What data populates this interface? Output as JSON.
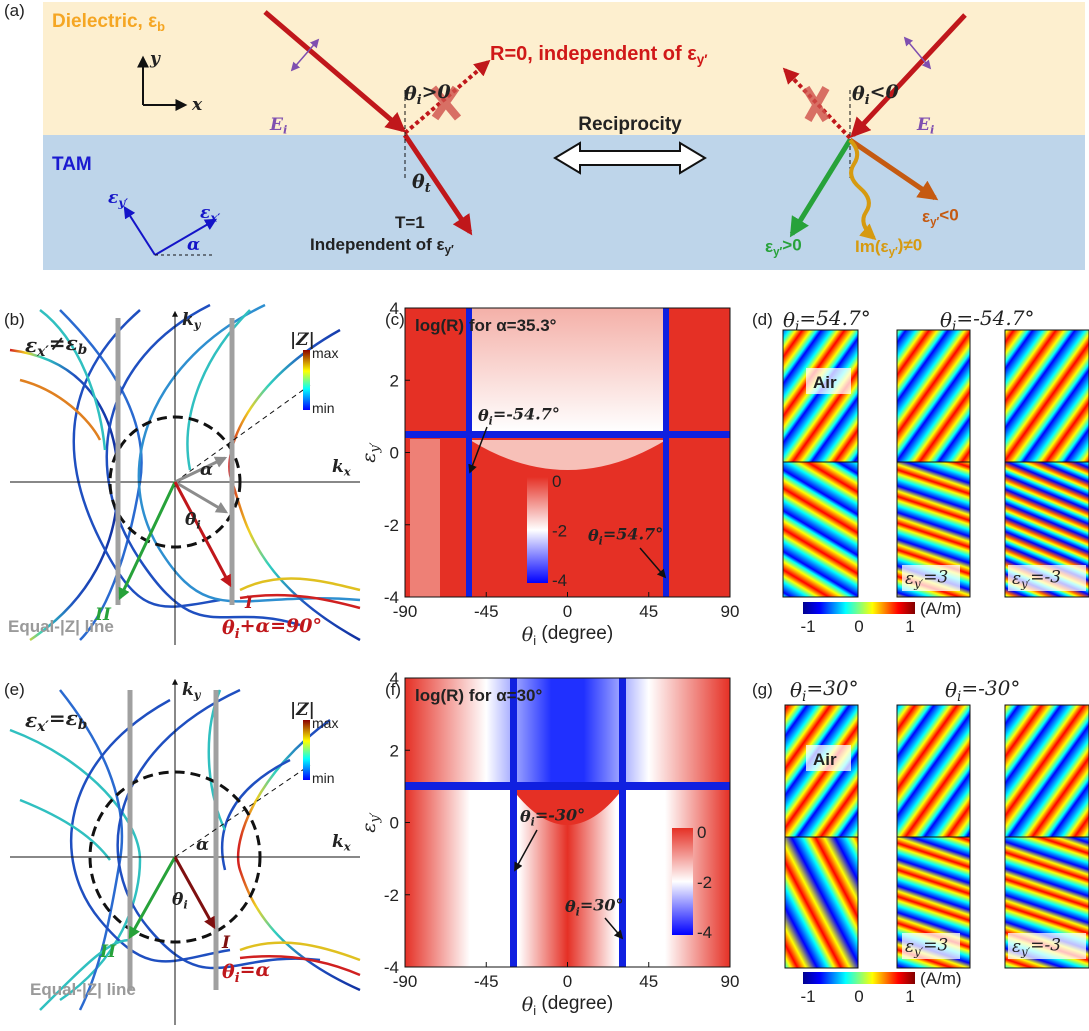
{
  "panel_a": {
    "label": "(a)",
    "dielectric": [
      [
        "Dielectric, ε",
        "b"
      ]
    ],
    "axis_y": "y",
    "axis_x": "x",
    "tam": "TAM",
    "eps_y": [
      [
        "ε",
        "y′"
      ]
    ],
    "eps_x": [
      [
        "ε",
        "x′"
      ]
    ],
    "alpha": "α",
    "e_left": [
      [
        "E",
        "i"
      ]
    ],
    "theta_left": [
      [
        "θ",
        "i"
      ],
      [
        ">0"
      ]
    ],
    "theta_t": [
      [
        "θ",
        "t"
      ]
    ],
    "r_note": [
      [
        "R=0, independent of ε",
        "y′"
      ]
    ],
    "t_note": "T=1",
    "t_indep": [
      [
        "Independent of ε",
        "y′"
      ]
    ],
    "reciprocity": "Reciprocity",
    "theta_right": [
      [
        "θ",
        "i"
      ],
      [
        "<0"
      ]
    ],
    "e_right": [
      [
        "E",
        "i"
      ]
    ],
    "eps_pos": [
      [
        "ε",
        "y′"
      ],
      [
        ">0"
      ]
    ],
    "eps_im": [
      [
        "Im(ε",
        "y′"
      ],
      [
        ")≠0"
      ]
    ],
    "eps_neg": [
      [
        "ε",
        "y′"
      ],
      [
        "<0"
      ]
    ]
  },
  "panel_b": {
    "label": "(b)",
    "condition": [
      [
        "ε",
        "x′"
      ],
      [
        "≠ε",
        "b"
      ]
    ],
    "ky": [
      [
        "k",
        "y"
      ]
    ],
    "kx": [
      [
        "k",
        "x"
      ]
    ],
    "z_label": "|Z|",
    "max": "max",
    "min": "min",
    "alpha": "α",
    "theta": [
      [
        "θ",
        "i"
      ]
    ],
    "point_2": "II",
    "point_1": "I",
    "line_label": "Equal-|Z| line",
    "relation": [
      [
        "θ",
        "i"
      ],
      [
        "+α=90°"
      ]
    ]
  },
  "panel_c": {
    "label": "(c)",
    "title": "log(R) for α=35.3°",
    "y_label": [
      [
        "ε",
        "y′"
      ]
    ],
    "x_label": [
      [
        "θ",
        "i"
      ],
      [
        " (degree)"
      ]
    ],
    "yticks": [
      4,
      2,
      0,
      -2,
      -4
    ],
    "xticks": [
      -90,
      -45,
      0,
      45,
      90
    ],
    "colorbar_ticks": [
      0,
      -2,
      -4
    ],
    "annotation_neg": [
      [
        "θ",
        "i"
      ],
      [
        "=-54.7°"
      ]
    ],
    "annotation_pos": [
      [
        "θ",
        "i"
      ],
      [
        "=54.7°"
      ]
    ]
  },
  "panel_d": {
    "label": "(d)",
    "angle_pos": [
      [
        "θ",
        "i"
      ],
      [
        "=54.7°"
      ]
    ],
    "angle_neg": [
      [
        "θ",
        "i"
      ],
      [
        "=-54.7°"
      ]
    ],
    "air": "Air",
    "eps_pos": [
      [
        "ε",
        "y′"
      ],
      [
        "=3"
      ]
    ],
    "eps_neg": [
      [
        "ε",
        "y′"
      ],
      [
        "=-3"
      ]
    ],
    "colorbar_ticks": [
      -1,
      0,
      1
    ],
    "unit": "(A/m)"
  },
  "panel_e": {
    "label": "(e)",
    "condition": [
      [
        "ε",
        "x′"
      ],
      [
        "=ε",
        "b"
      ]
    ],
    "ky": [
      [
        "k",
        "y"
      ]
    ],
    "kx": [
      [
        "k",
        "x"
      ]
    ],
    "z_label": "|Z|",
    "max": "max",
    "min": "min",
    "alpha": "α",
    "theta": [
      [
        "θ",
        "i"
      ]
    ],
    "point_2": "II",
    "point_1": "I",
    "line_label": "Equal-|Z| line",
    "relation": [
      [
        "θ",
        "i"
      ],
      [
        "=α"
      ]
    ]
  },
  "panel_f": {
    "label": "(f)",
    "title": "log(R) for α=30°",
    "y_label": [
      [
        "ε",
        "y′"
      ]
    ],
    "x_label": [
      [
        "θ",
        "i"
      ],
      [
        " (degree)"
      ]
    ],
    "yticks": [
      4,
      2,
      0,
      -2,
      -4
    ],
    "xticks": [
      -90,
      -45,
      0,
      45,
      90
    ],
    "colorbar_ticks": [
      0,
      -2,
      -4
    ],
    "annotation_neg": [
      [
        "θ",
        "i"
      ],
      [
        "=-30°"
      ]
    ],
    "annotation_pos": [
      [
        "θ",
        "i"
      ],
      [
        "=30°"
      ]
    ]
  },
  "panel_g": {
    "label": "(g)",
    "angle_pos": [
      [
        "θ",
        "i"
      ],
      [
        "=30°"
      ]
    ],
    "angle_neg": [
      [
        "θ",
        "i"
      ],
      [
        "=-30°"
      ]
    ],
    "air": "Air",
    "eps_pos": [
      [
        "ε",
        "y′"
      ],
      [
        "=3"
      ]
    ],
    "eps_neg": [
      [
        "ε",
        "y′"
      ],
      [
        "=-3"
      ]
    ],
    "colorbar_ticks": [
      -1,
      0,
      1
    ],
    "unit": "(A/m)"
  }
}
